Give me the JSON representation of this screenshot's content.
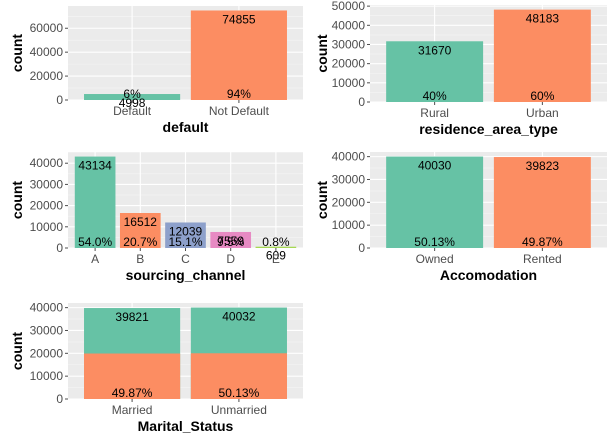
{
  "colors": {
    "teal": "#66c2a5",
    "orange": "#fc8d62",
    "blue": "#8da0cb",
    "pink": "#e78ac3",
    "green": "#a6d854",
    "panel": "#ebebeb",
    "grid": "#ffffff"
  },
  "chart_data": [
    {
      "type": "bar",
      "xlabel": "default",
      "ylabel": "count",
      "ylim": [
        0,
        78600
      ],
      "yticks": [
        0,
        20000,
        40000,
        60000
      ],
      "yticks_text": [
        "0",
        "20000",
        "40000",
        "60000"
      ],
      "categories": [
        "Default",
        "Not Default"
      ],
      "values": [
        4998,
        74855
      ],
      "value_labels": [
        "4998",
        "74855"
      ],
      "percent_labels": [
        "6%",
        "94%"
      ],
      "colors": [
        "#66c2a5",
        "#fc8d62"
      ]
    },
    {
      "type": "bar",
      "xlabel": "residence_area_type",
      "ylabel": "count",
      "ylim": [
        0,
        50590
      ],
      "yticks": [
        0,
        10000,
        20000,
        30000,
        40000,
        50000
      ],
      "yticks_text": [
        "0",
        "10000",
        "20000",
        "30000",
        "40000",
        "50000"
      ],
      "categories": [
        "Rural",
        "Urban"
      ],
      "values": [
        31670,
        48183
      ],
      "value_labels": [
        "31670",
        "48183"
      ],
      "percent_labels": [
        "40%",
        "60%"
      ],
      "colors": [
        "#66c2a5",
        "#fc8d62"
      ]
    },
    {
      "type": "bar",
      "xlabel": "sourcing_channel",
      "ylabel": "count",
      "ylim": [
        0,
        45290
      ],
      "yticks": [
        0,
        10000,
        20000,
        30000,
        40000
      ],
      "yticks_text": [
        "0",
        "10000",
        "20000",
        "30000",
        "40000"
      ],
      "categories": [
        "A",
        "B",
        "C",
        "D",
        "E"
      ],
      "values": [
        43134,
        16512,
        12039,
        7559,
        609
      ],
      "value_labels": [
        "43134",
        "16512",
        "12039",
        "7559",
        "609"
      ],
      "percent_labels": [
        "54.0%",
        "20.7%",
        "15.1%",
        "9.5%",
        "0.8%"
      ],
      "colors": [
        "#66c2a5",
        "#fc8d62",
        "#8da0cb",
        "#e78ac3",
        "#a6d854"
      ]
    },
    {
      "type": "bar",
      "xlabel": "Accomodation",
      "ylabel": "count",
      "ylim": [
        0,
        42030
      ],
      "yticks": [
        0,
        10000,
        20000,
        30000,
        40000
      ],
      "yticks_text": [
        "0",
        "10000",
        "20000",
        "30000",
        "40000"
      ],
      "categories": [
        "Owned",
        "Rented"
      ],
      "values": [
        40030,
        39823
      ],
      "value_labels": [
        "40030",
        "39823"
      ],
      "percent_labels": [
        "50.13%",
        "49.87%"
      ],
      "colors": [
        "#66c2a5",
        "#fc8d62"
      ]
    },
    {
      "type": "bar",
      "xlabel": "Marital_Status",
      "ylabel": "count",
      "ylim": [
        0,
        42030
      ],
      "yticks": [
        0,
        10000,
        20000,
        30000,
        40000
      ],
      "yticks_text": [
        "0",
        "10000",
        "20000",
        "30000",
        "40000"
      ],
      "categories": [
        "Married",
        "Unmarried"
      ],
      "values": [
        39821,
        40032
      ],
      "split_values": [
        19910,
        20016
      ],
      "value_labels": [
        "39821",
        "40032"
      ],
      "percent_labels": [
        "49.87%",
        "50.13%"
      ],
      "colors": [
        "#66c2a5",
        "#66c2a5"
      ],
      "split_colors": [
        "#fc8d62",
        "#fc8d62"
      ]
    }
  ]
}
